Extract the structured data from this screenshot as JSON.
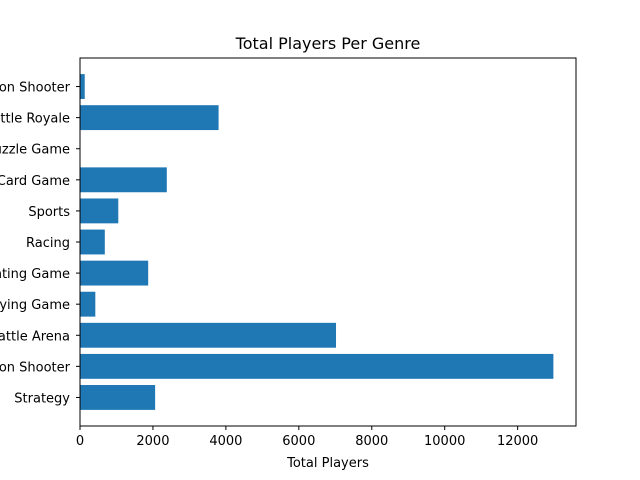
{
  "chart_data": {
    "type": "bar",
    "orientation": "horizontal",
    "title": "Total Players Per Genre",
    "xlabel": "Total Players",
    "ylabel": "",
    "categories": [
      "First-person Shooter",
      "Battle Royale",
      "Puzzle Game",
      "Collectible Card Game",
      "Sports",
      "Racing",
      "Fighting Game",
      "Role-playing Game",
      "Multiplayer Online Battle Arena",
      "Third-person Shooter",
      "Strategy"
    ],
    "values": [
      130,
      3800,
      0,
      2380,
      1050,
      680,
      1870,
      420,
      7020,
      12980,
      2060
    ],
    "xlim": [
      0,
      13600
    ],
    "xticks": [
      0,
      2000,
      4000,
      6000,
      8000,
      10000,
      12000
    ],
    "bar_color": "#1f77b4",
    "grid": false
  }
}
